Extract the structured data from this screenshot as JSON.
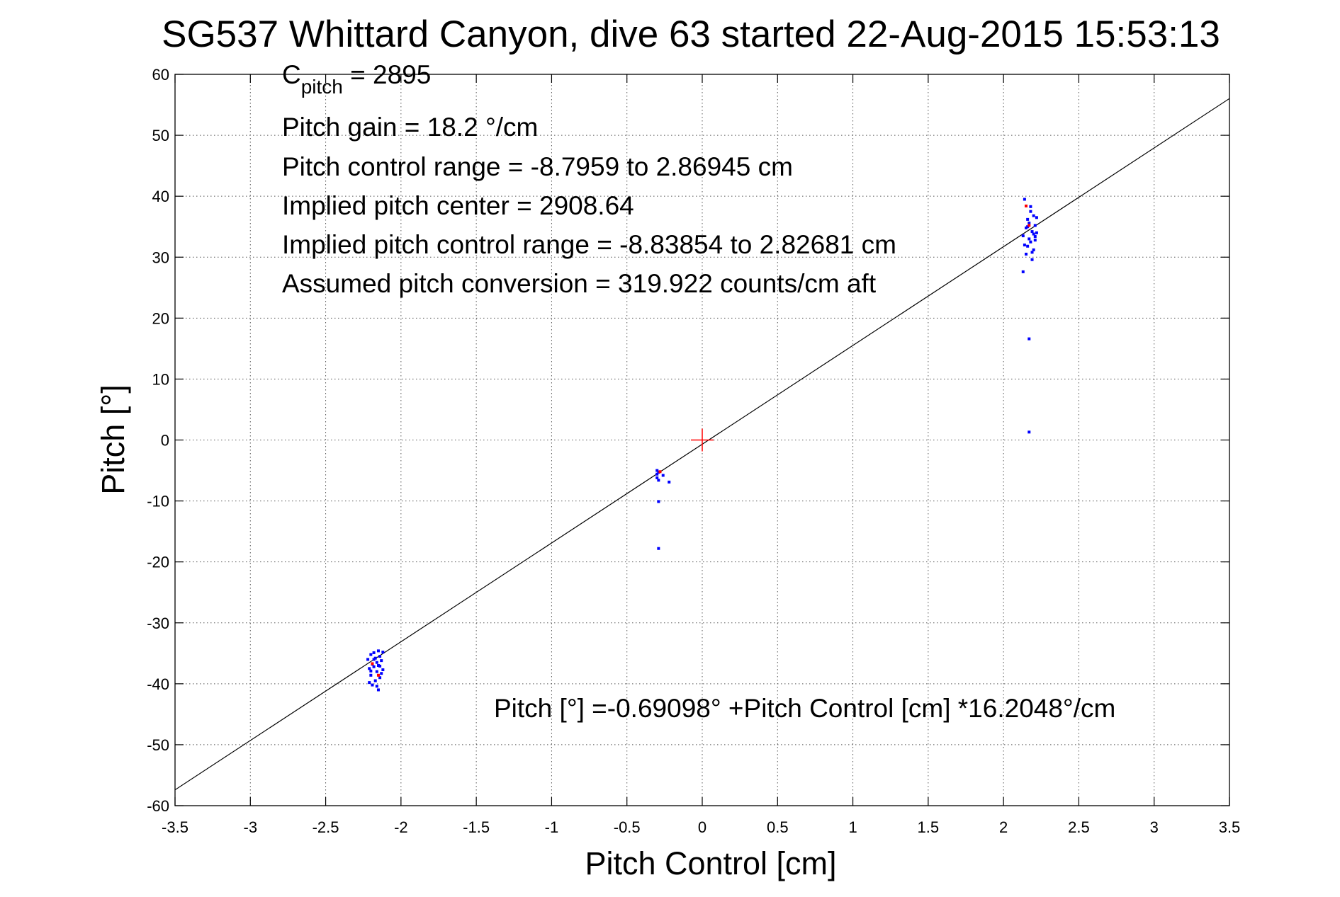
{
  "chart_data": {
    "type": "scatter",
    "title": "SG537 Whittard Canyon, dive 63 started 22-Aug-2015 15:53:13",
    "xlabel": "Pitch Control [cm]",
    "ylabel": "Pitch [°]",
    "xlim": [
      -3.5,
      3.5
    ],
    "ylim": [
      -60,
      60
    ],
    "xticks": [
      -3.5,
      -3,
      -2.5,
      -2,
      -1.5,
      -1,
      -0.5,
      0,
      0.5,
      1,
      1.5,
      2,
      2.5,
      3,
      3.5
    ],
    "yticks": [
      -60,
      -50,
      -40,
      -30,
      -20,
      -10,
      0,
      10,
      20,
      30,
      40,
      50,
      60
    ],
    "xtick_labels": [
      "-3.5",
      "-3",
      "-2.5",
      "-2",
      "-1.5",
      "-1",
      "-0.5",
      "0",
      "0.5",
      "1",
      "1.5",
      "2",
      "2.5",
      "3",
      "3.5"
    ],
    "ytick_labels": [
      "-60",
      "-50",
      "-40",
      "-30",
      "-20",
      "-10",
      "0",
      "10",
      "20",
      "30",
      "40",
      "50",
      "60"
    ],
    "grid": true,
    "annotations": {
      "c_pitch_main": "C",
      "c_pitch_sub": "pitch",
      "c_pitch_value": " = 2895",
      "lines": [
        "Pitch gain = 18.2 °/cm",
        "Pitch control range = -8.7959 to 2.86945 cm",
        "Implied pitch center = 2908.64",
        "Implied pitch control range = -8.83854 to 2.82681 cm",
        "Assumed pitch conversion = 319.922 counts/cm aft"
      ],
      "fit_equation": "Pitch [°] =-0.69098° +Pitch Control [cm] *16.2048°/cm"
    },
    "fit_line": {
      "intercept": -0.69098,
      "slope": 16.2048,
      "color": "#000000"
    },
    "center_marker": {
      "x": 0,
      "y": 0,
      "color": "#ff0000"
    },
    "series": [
      {
        "color": "#0000ff",
        "points": [
          [
            -2.22,
            -36.0
          ],
          [
            -2.21,
            -37.5
          ],
          [
            -2.2,
            -35.2
          ],
          [
            -2.2,
            -38.6
          ],
          [
            -2.19,
            -36.8
          ],
          [
            -2.19,
            -40.2
          ],
          [
            -2.18,
            -34.9
          ],
          [
            -2.18,
            -37.2
          ],
          [
            -2.17,
            -39.5
          ],
          [
            -2.17,
            -35.8
          ],
          [
            -2.16,
            -36.5
          ],
          [
            -2.16,
            -38.0
          ],
          [
            -2.15,
            -34.6
          ],
          [
            -2.15,
            -37.0
          ],
          [
            -2.15,
            -41.0
          ],
          [
            -2.14,
            -35.5
          ],
          [
            -2.14,
            -39.0
          ],
          [
            -2.13,
            -36.2
          ],
          [
            -2.13,
            -38.3
          ],
          [
            -2.12,
            -34.8
          ],
          [
            -2.12,
            -37.7
          ],
          [
            -2.21,
            -39.8
          ],
          [
            -2.2,
            -37.9
          ],
          [
            -2.18,
            -36.0
          ],
          [
            -2.16,
            -40.4
          ],
          [
            -2.14,
            -37.1
          ],
          [
            -0.3,
            -5.0
          ],
          [
            -0.3,
            -5.6
          ],
          [
            -0.3,
            -6.2
          ],
          [
            -0.29,
            -6.6
          ],
          [
            -0.29,
            -5.3
          ],
          [
            -0.29,
            -10.1
          ],
          [
            -0.29,
            -17.8
          ],
          [
            -0.22,
            -6.9
          ],
          [
            -0.26,
            -5.8
          ],
          [
            2.14,
            39.5
          ],
          [
            2.13,
            33.5
          ],
          [
            2.14,
            32.0
          ],
          [
            2.15,
            34.8
          ],
          [
            2.15,
            30.5
          ],
          [
            2.16,
            36.2
          ],
          [
            2.16,
            31.8
          ],
          [
            2.17,
            33.0
          ],
          [
            2.17,
            35.6
          ],
          [
            2.18,
            37.5
          ],
          [
            2.18,
            32.5
          ],
          [
            2.19,
            34.2
          ],
          [
            2.19,
            30.8
          ],
          [
            2.2,
            36.8
          ],
          [
            2.2,
            33.8
          ],
          [
            2.2,
            31.2
          ],
          [
            2.21,
            35.2
          ],
          [
            2.21,
            32.8
          ],
          [
            2.22,
            36.5
          ],
          [
            2.22,
            34.0
          ],
          [
            2.19,
            29.6
          ],
          [
            2.13,
            27.6
          ],
          [
            2.18,
            38.3
          ],
          [
            2.21,
            33.4
          ],
          [
            2.16,
            35.0
          ],
          [
            2.17,
            16.6
          ],
          [
            2.17,
            1.3
          ]
        ]
      },
      {
        "color": "#ff0000",
        "points": [
          [
            2.15,
            38.4
          ],
          [
            2.17,
            35.2
          ],
          [
            -2.15,
            -38.6
          ],
          [
            -2.19,
            -36.7
          ],
          [
            -0.28,
            -5.2
          ]
        ]
      }
    ]
  }
}
